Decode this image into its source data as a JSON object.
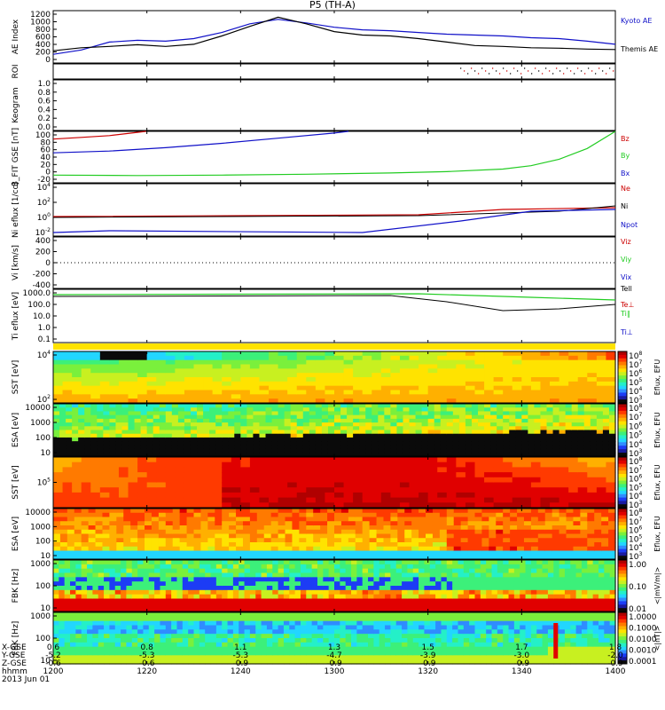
{
  "title": "P5 (TH-A)",
  "chart_data": [
    {
      "type": "line",
      "panel": "AE index",
      "ylabel": "AE Index",
      "ylim": [
        0,
        1200
      ],
      "yticks": [
        "1200",
        "1000",
        "800",
        "600",
        "400",
        "200",
        "0"
      ],
      "series": [
        {
          "name": "Kyoto AE",
          "color": "#1010c8",
          "x": [
            12.0,
            12.1,
            12.2,
            12.3,
            12.4,
            12.5,
            12.6,
            12.7,
            12.8,
            12.9,
            13.0,
            13.1,
            13.2,
            13.3,
            13.4,
            13.5,
            13.6,
            13.7,
            13.8,
            13.9,
            14.0
          ],
          "values": [
            200,
            300,
            480,
            520,
            500,
            560,
            700,
            900,
            1000,
            920,
            820,
            760,
            740,
            700,
            660,
            640,
            620,
            580,
            560,
            500,
            430
          ]
        },
        {
          "name": "Themis AE",
          "color": "#000000",
          "x": [
            12.0,
            12.1,
            12.2,
            12.3,
            12.4,
            12.5,
            12.6,
            12.7,
            12.8,
            12.9,
            13.0,
            13.1,
            13.2,
            13.3,
            13.4,
            13.5,
            13.6,
            13.7,
            13.8,
            13.9,
            14.0
          ],
          "values": [
            280,
            350,
            380,
            420,
            380,
            430,
            620,
            840,
            1050,
            900,
            720,
            640,
            620,
            560,
            480,
            400,
            380,
            350,
            340,
            320,
            310
          ]
        }
      ]
    },
    {
      "type": "scatter",
      "panel": "ROI",
      "ylabel": "ROI"
    },
    {
      "type": "heatmap",
      "panel": "Keogram",
      "ylabel": "Keogram",
      "ylim": [
        0,
        1.0
      ],
      "yticks": [
        "1.0",
        "0.8",
        "0.6",
        "0.4",
        "0.2",
        "0.0"
      ]
    },
    {
      "type": "line",
      "panel": "B FIT GSE",
      "ylabel": "B_FIT GSE [nT]",
      "ylim": [
        -20,
        100
      ],
      "yticks": [
        "100",
        "80",
        "60",
        "40",
        "20",
        "0",
        "-20"
      ],
      "series": [
        {
          "name": "Bz",
          "color": "#cc0000",
          "x": [
            12.0,
            12.1,
            12.2,
            12.33
          ],
          "values": [
            82,
            86,
            90,
            100
          ]
        },
        {
          "name": "By",
          "color": "#22cc22",
          "x": [
            12.0,
            12.3,
            12.6,
            12.9,
            13.2,
            13.4,
            13.6,
            13.7,
            13.8,
            13.9,
            14.0
          ],
          "values": [
            -2,
            -3,
            -2,
            0,
            3,
            6,
            12,
            20,
            35,
            60,
            100
          ]
        },
        {
          "name": "Bx",
          "color": "#1010c8",
          "x": [
            12.0,
            12.2,
            12.4,
            12.6,
            12.8,
            13.0,
            13.05
          ],
          "values": [
            50,
            54,
            62,
            72,
            84,
            96,
            100
          ]
        }
      ]
    },
    {
      "type": "line",
      "panel": "Ni",
      "ylabel": "Ni eflux [1/cc]",
      "yticks": [
        "10^4",
        "10^2",
        "10^0",
        "10^-2"
      ],
      "series": [
        {
          "name": "Ne",
          "color": "#cc0000"
        },
        {
          "name": "Ni",
          "color": "#000000"
        },
        {
          "name": "Npot",
          "color": "#1010c8"
        }
      ]
    },
    {
      "type": "line",
      "panel": "Vi",
      "ylabel": "Vi [km/s]",
      "ylim": [
        -500,
        500
      ],
      "yticks": [
        "400",
        "200",
        "0",
        "-200",
        "-400"
      ],
      "series": [
        {
          "name": "Viz",
          "color": "#cc0000"
        },
        {
          "name": "Viy",
          "color": "#22cc22"
        },
        {
          "name": "Vix",
          "color": "#1010c8"
        }
      ]
    },
    {
      "type": "line",
      "panel": "Ti",
      "ylabel": "Ti eflux [eV]",
      "yticks": [
        "1000.0",
        "100.0",
        "10.0",
        "1.0",
        "0.1"
      ],
      "series": [
        {
          "name": "Tell",
          "color": "#000000"
        },
        {
          "name": "Te⊥",
          "color": "#cc0000"
        },
        {
          "name": "Ti∥",
          "color": "#22cc22"
        },
        {
          "name": "Ti⊥",
          "color": "#1010c8"
        }
      ]
    },
    {
      "type": "heatmap",
      "panel": "SST eflux",
      "ylabel": "SST [eV]",
      "yticks": [
        "10^4",
        "10^2"
      ],
      "colorbar": [
        "10^8",
        "10^7",
        "10^6",
        "10^5",
        "10^4",
        "10^3"
      ],
      "cbar_label": "Eflux, EFU"
    },
    {
      "type": "heatmap",
      "panel": "ESA eflux",
      "ylabel": "ESA [eV]",
      "yticks": [
        "10000",
        "1000",
        "100",
        "10"
      ],
      "colorbar": [
        "10^8",
        "10^7",
        "10^6",
        "10^5",
        "10^4",
        "10^3"
      ],
      "cbar_label": "Eflux, EFU"
    },
    {
      "type": "heatmap",
      "panel": "SST ion eflux",
      "ylabel": "SST [eV]",
      "yticks": [
        "10^5"
      ],
      "colorbar": [
        "10^8",
        "10^7",
        "10^6",
        "10^5",
        "10^4",
        "10^3"
      ],
      "cbar_label": "Eflux, EFU"
    },
    {
      "type": "heatmap",
      "panel": "ESA ion eflux",
      "ylabel": "ESA [eV]",
      "yticks": [
        "10000",
        "1000",
        "100",
        "10"
      ],
      "colorbar": [
        "10^8",
        "10^7",
        "10^6",
        "10^5",
        "10^4",
        "10^3"
      ],
      "cbar_label": "Eflux, EFU"
    },
    {
      "type": "heatmap",
      "panel": "FBK edc12",
      "ylabel": "FBK [Hz]",
      "yticks": [
        "1000",
        "100",
        "10"
      ],
      "colorbar": [
        "1.00",
        "0.10",
        "0.01"
      ],
      "cbar_label": "<|mV/m|>"
    },
    {
      "type": "heatmap",
      "panel": "FBK scm",
      "ylabel": "FBK [Hz]",
      "yticks": [
        "1000",
        "100",
        "10"
      ],
      "colorbar": [
        "1.0000",
        "0.1000",
        "0.0100",
        "0.0010",
        "0.0001"
      ],
      "cbar_label": "<|nT|>"
    }
  ],
  "xaxis": {
    "ticks": [
      "1200",
      "1220",
      "1240",
      "1300",
      "1320",
      "1340",
      "1400"
    ],
    "rows": [
      {
        "label": "X-GSE",
        "values": [
          "0.6",
          "0.8",
          "1.1",
          "1.3",
          "1.5",
          "1.7",
          "1.8"
        ]
      },
      {
        "label": "Y-GSE",
        "values": [
          "-5.2",
          "-5.3",
          "-5.3",
          "-4.7",
          "-3.9",
          "-3.0",
          "-2.0"
        ]
      },
      {
        "label": "Z-GSE",
        "values": [
          "-0.6",
          "-0.6",
          "-0.9",
          "-0.9",
          "-0.9",
          "-0.9",
          "-0.9"
        ]
      },
      {
        "label": "hhmm",
        "values": [
          "1200",
          "1220",
          "1240",
          "1300",
          "1320",
          "1340",
          "1400"
        ]
      }
    ],
    "date": "2013 Jun 01"
  }
}
